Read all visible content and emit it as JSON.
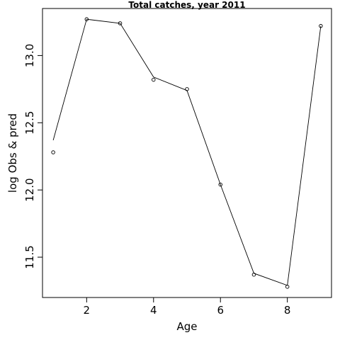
{
  "chart_data": {
    "type": "line",
    "title": "Total catches, year 2011",
    "xlabel": "Age",
    "ylabel": "log Obs & pred",
    "xlim": [
      0.68,
      9.32
    ],
    "ylim": [
      11.2,
      13.35
    ],
    "xticks": [
      2,
      4,
      6,
      8
    ],
    "yticks": [
      11.5,
      12.0,
      12.5,
      13.0
    ],
    "xtick_labels": [
      "2",
      "4",
      "6",
      "8"
    ],
    "ytick_labels": [
      "11.5",
      "12.0",
      "12.5",
      "13.0"
    ],
    "grid": false,
    "series": [
      {
        "style": "points",
        "x": [
          1,
          2,
          3,
          4,
          5,
          6,
          7,
          8,
          9
        ],
        "values": [
          12.28,
          13.27,
          13.24,
          12.82,
          12.75,
          12.04,
          11.37,
          11.28,
          13.22
        ]
      },
      {
        "style": "line",
        "x": [
          1,
          2,
          3,
          4,
          5,
          6,
          7,
          8,
          9
        ],
        "values": [
          12.37,
          13.27,
          13.24,
          12.84,
          12.74,
          12.04,
          11.38,
          11.29,
          13.22
        ]
      }
    ]
  }
}
